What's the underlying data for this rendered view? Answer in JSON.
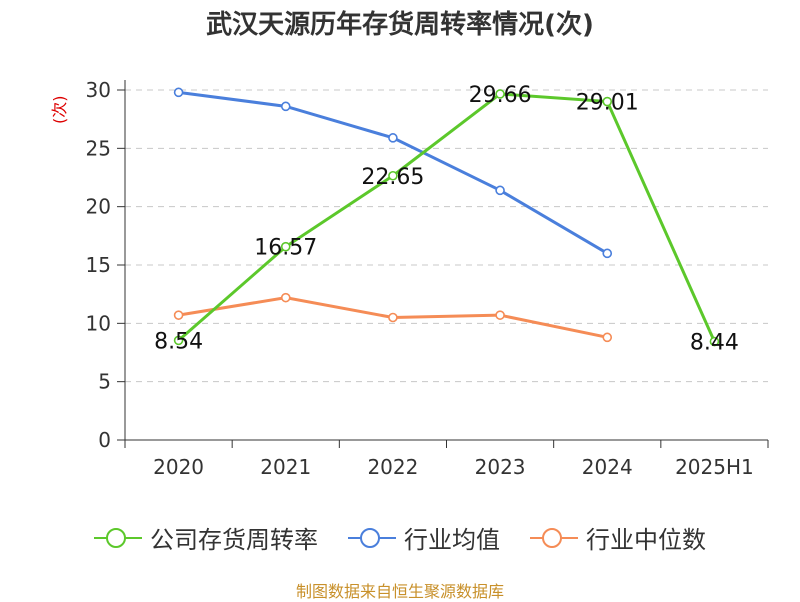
{
  "title": "武汉天源历年存货周转率情况(次)",
  "y_unit": "(次)",
  "source": "制图数据来自恒生聚源数据库",
  "legend": [
    {
      "name": "公司存货周转率",
      "color": "#5cc82b"
    },
    {
      "name": "行业均值",
      "color": "#4a7fdc"
    },
    {
      "name": "行业中位数",
      "color": "#f58c56"
    }
  ],
  "chart_data": {
    "type": "line",
    "categories": [
      "2020",
      "2021",
      "2022",
      "2023",
      "2024",
      "2025H1"
    ],
    "ylim": [
      0,
      30
    ],
    "yticks": [
      0,
      5,
      10,
      15,
      20,
      25,
      30
    ],
    "grid": true,
    "legend_position": "bottom",
    "series": [
      {
        "name": "公司存货周转率",
        "color": "#5cc82b",
        "values": [
          8.54,
          16.57,
          22.65,
          29.66,
          29.01,
          8.44
        ],
        "labels": true
      },
      {
        "name": "行业均值",
        "color": "#4a7fdc",
        "values": [
          29.8,
          28.6,
          25.9,
          21.4,
          16.0,
          null
        ],
        "labels": false
      },
      {
        "name": "行业中位数",
        "color": "#f58c56",
        "values": [
          10.7,
          12.2,
          10.5,
          10.7,
          8.8,
          null
        ],
        "labels": false
      }
    ]
  }
}
